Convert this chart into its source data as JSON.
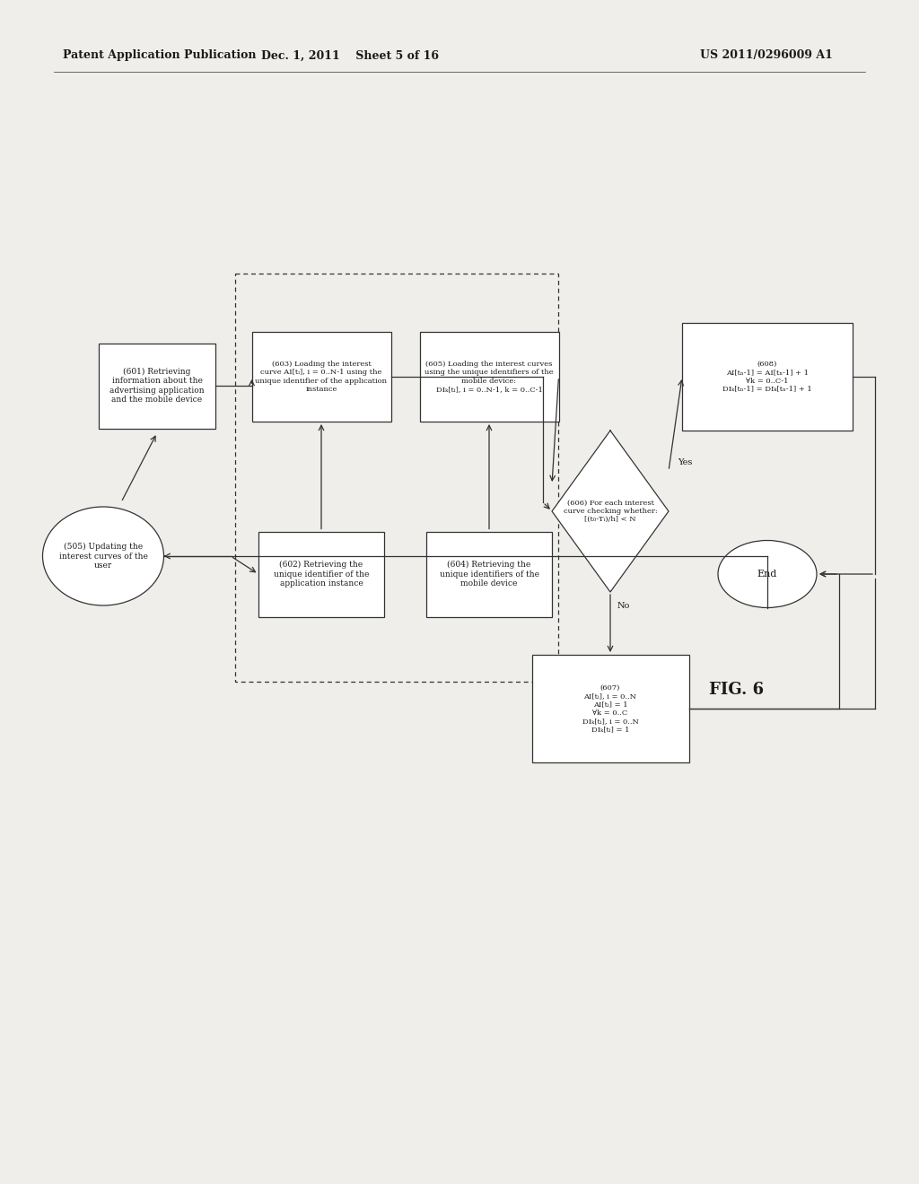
{
  "header_left": "Patent Application Publication",
  "header_middle": "Dec. 1, 2011    Sheet 5 of 16",
  "header_right": "US 2011/0296009 A1",
  "figure_label": "FIG. 6",
  "bg_color": "#f0eeea",
  "text_color": "#1a1a1a",
  "box601_text": "(601) Retrieving\ninformation about the\nadvertising application\nand the mobile device",
  "box603_text": "(603) Loading the interest\ncurve AI[tᵢ], i = 0..N-1 using the\nunique identifier of the application\ninstance",
  "box605_text": "(605) Loading the interest curves\nusing the unique identifiers of the\nmobile device:\nDIₖ[tᵢ], i = 0..N-1, k = 0..C-1",
  "box602_text": "(602) Retrieving the\nunique identifier of the\napplication instance",
  "box604_text": "(604) Retrieving the\nunique identifiers of the\nmobile device",
  "ell505_text": "(505) Updating the\ninterest curves of the\nuser",
  "diamond606_text": "(606) For each interest\ncurve checking whether:\n[(t₀-Tᵢ)/h] < N",
  "box607_text": "(607)\nAI[tᵢ], i = 0..N\nAI[tᵢ] = 1\n∀k = 0..C\nDIₖ[tᵢ], i = 0..N\nDIₖ[tᵢ] = 1",
  "box608_text": "(608)\nAI[tₙ-1] = AI[tₙ-1] + 1\n∀k = 0..C-1\nDIₖ[tₙ-1] = DIₖ[tₙ-1] + 1",
  "end_text": "End",
  "yes_label": "Yes",
  "no_label": "No"
}
